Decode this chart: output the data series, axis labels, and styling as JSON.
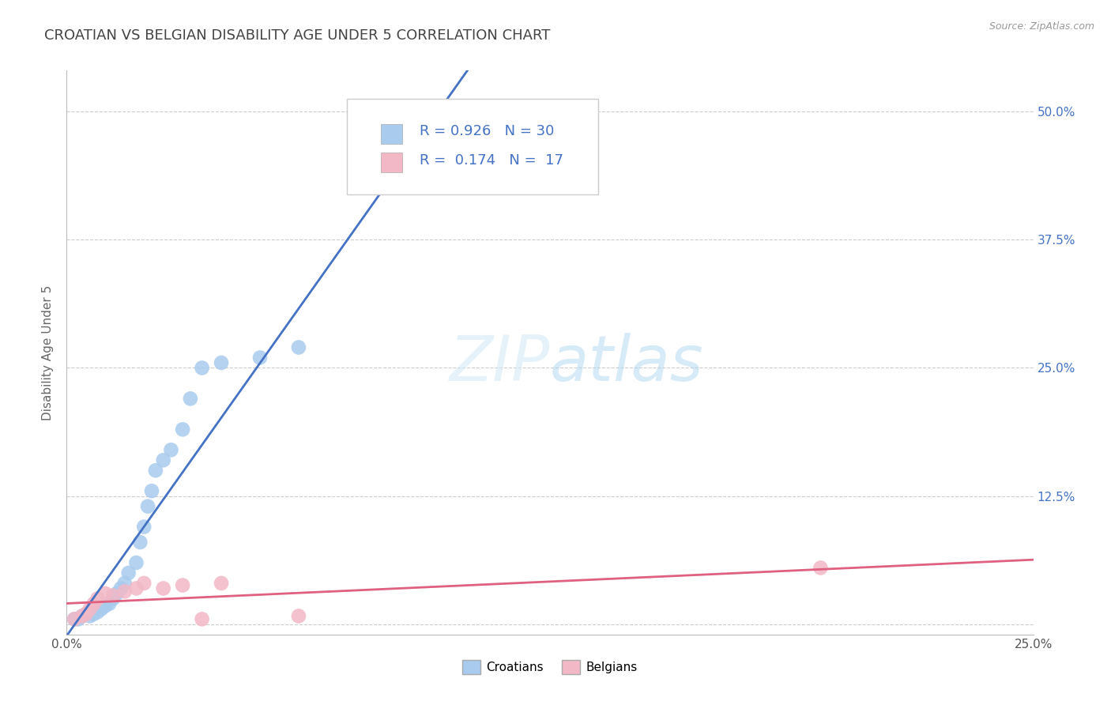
{
  "title": "CROATIAN VS BELGIAN DISABILITY AGE UNDER 5 CORRELATION CHART",
  "source": "Source: ZipAtlas.com",
  "ylabel": "Disability Age Under 5",
  "xlim": [
    0.0,
    0.25
  ],
  "ylim": [
    -0.01,
    0.54
  ],
  "xticks": [
    0.0,
    0.05,
    0.1,
    0.15,
    0.2,
    0.25
  ],
  "xtick_labels": [
    "0.0%",
    "",
    "",
    "",
    "",
    "25.0%"
  ],
  "yticks": [
    0.0,
    0.125,
    0.25,
    0.375,
    0.5
  ],
  "ytick_labels_right": [
    "",
    "12.5%",
    "25.0%",
    "37.5%",
    "50.0%"
  ],
  "croatian_color": "#A8CBEE",
  "belgian_color": "#F2B8C6",
  "croatian_line_color": "#4472C4",
  "belgian_line_color": "#E06080",
  "background_color": "#FFFFFF",
  "grid_color": "#CCCCCC",
  "watermark": "ZIPatlas",
  "croatian_x": [
    0.002,
    0.003,
    0.004,
    0.005,
    0.006,
    0.007,
    0.008,
    0.009,
    0.01,
    0.011,
    0.012,
    0.013,
    0.014,
    0.015,
    0.016,
    0.018,
    0.019,
    0.02,
    0.021,
    0.022,
    0.023,
    0.025,
    0.027,
    0.03,
    0.032,
    0.035,
    0.04,
    0.05,
    0.06,
    0.1
  ],
  "croatian_y": [
    0.005,
    0.005,
    0.008,
    0.01,
    0.008,
    0.01,
    0.012,
    0.015,
    0.018,
    0.02,
    0.025,
    0.03,
    0.035,
    0.04,
    0.05,
    0.06,
    0.08,
    0.095,
    0.115,
    0.13,
    0.15,
    0.16,
    0.17,
    0.19,
    0.22,
    0.25,
    0.255,
    0.26,
    0.27,
    0.46
  ],
  "belgian_x": [
    0.002,
    0.004,
    0.005,
    0.006,
    0.007,
    0.008,
    0.01,
    0.012,
    0.015,
    0.018,
    0.02,
    0.025,
    0.03,
    0.035,
    0.04,
    0.06,
    0.195
  ],
  "belgian_y": [
    0.005,
    0.008,
    0.01,
    0.015,
    0.02,
    0.025,
    0.03,
    0.028,
    0.032,
    0.035,
    0.04,
    0.035,
    0.038,
    0.005,
    0.04,
    0.008,
    0.055
  ],
  "title_fontsize": 13,
  "axis_label_fontsize": 11,
  "tick_fontsize": 11,
  "legend_fontsize": 13,
  "r1": "0.926",
  "n1": "30",
  "r2": "0.174",
  "n2": "17"
}
